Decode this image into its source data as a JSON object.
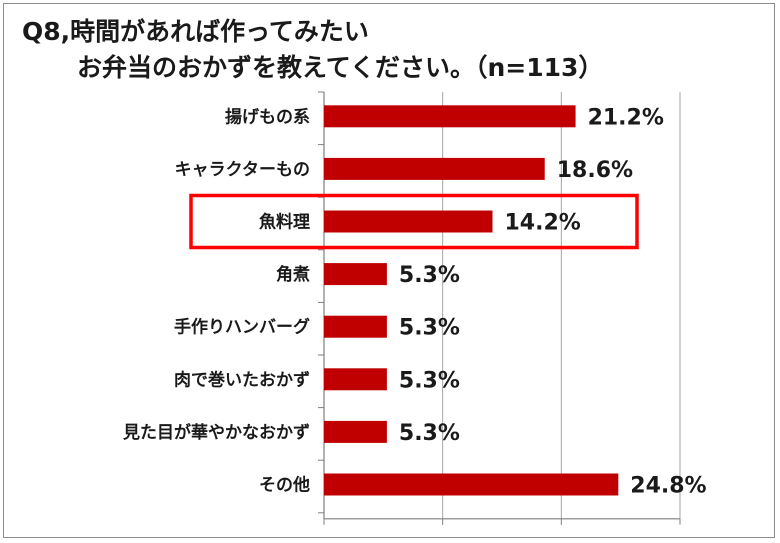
{
  "title": {
    "line1": "Q8,時間があれば作ってみたい",
    "line2": "お弁当のおかずを教えてください。（n=113）"
  },
  "colors": {
    "bar": "#c00000",
    "highlight_box": "#ff0000",
    "grid": "#a6a6a6"
  },
  "chart_data": {
    "type": "bar",
    "orientation": "horizontal",
    "categories": [
      "揚げもの系",
      "キャラクターもの",
      "魚料理",
      "角煮",
      "手作りハンバーグ",
      "肉で巻いたおかず",
      "見た目が華やかなおかず",
      "その他"
    ],
    "values": [
      21.2,
      18.6,
      14.2,
      5.3,
      5.3,
      5.3,
      5.3,
      24.8
    ],
    "value_labels": [
      "21.2%",
      "18.6%",
      "14.2%",
      "5.3%",
      "5.3%",
      "5.3%",
      "5.3%",
      "24.8%"
    ],
    "xlim": [
      0,
      30
    ],
    "grid": true,
    "highlighted_category": "魚料理"
  }
}
